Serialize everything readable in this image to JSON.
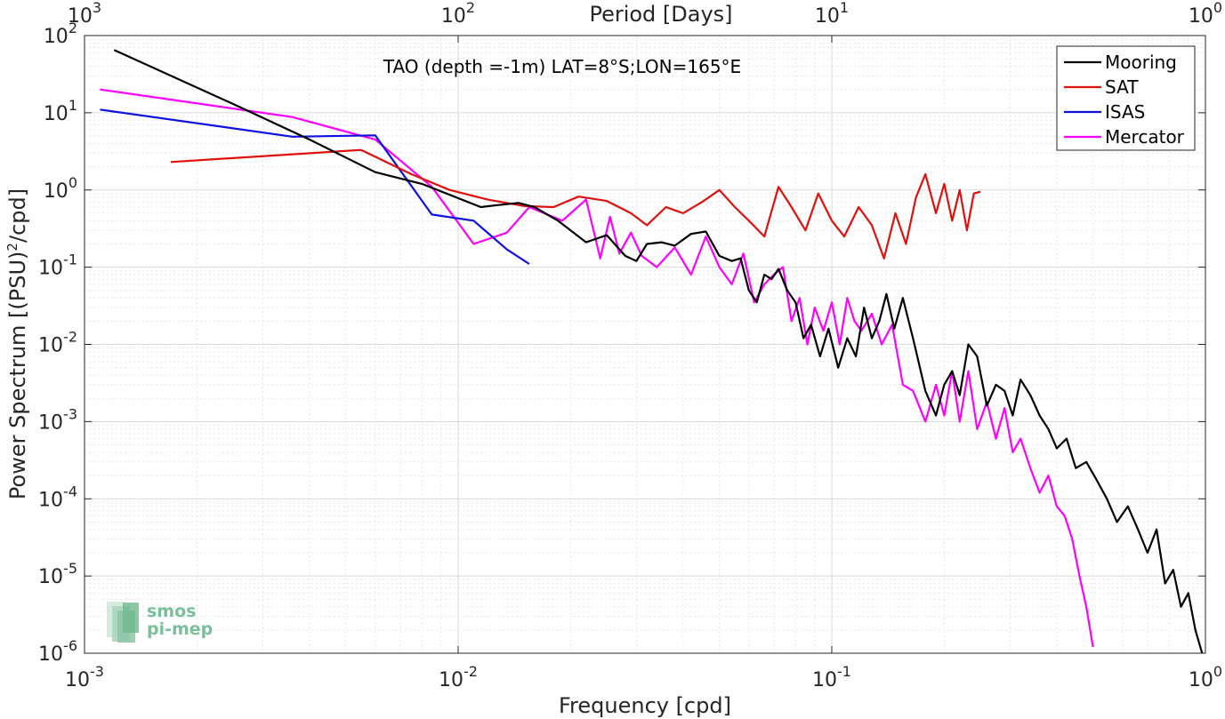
{
  "chart_data": {
    "type": "line",
    "title": "TAO (depth =-1m) LAT=8°S;LON=165°E",
    "xlabel": "Frequency [cpd]",
    "ylabel": "Power Spectrum [(PSU)",
    "ylabel_sup": "2",
    "ylabel_tail": "/cpd]",
    "top_xlabel": "Period [Days]",
    "x_scale": "log",
    "y_scale": "log",
    "xlim": [
      0.001,
      1
    ],
    "ylim": [
      1e-06,
      100
    ],
    "grid": true,
    "legend_position": "top-right",
    "x_ticks": [
      {
        "value": 0.001,
        "base": "10",
        "exp": "-3"
      },
      {
        "value": 0.01,
        "base": "10",
        "exp": "-2"
      },
      {
        "value": 0.1,
        "base": "10",
        "exp": "-1"
      },
      {
        "value": 1,
        "base": "10",
        "exp": "0"
      }
    ],
    "top_ticks": [
      {
        "value": 0.001,
        "base": "10",
        "exp": "3"
      },
      {
        "value": 0.01,
        "base": "10",
        "exp": "2"
      },
      {
        "value": 0.1,
        "base": "10",
        "exp": "1"
      },
      {
        "value": 1,
        "base": "10",
        "exp": "0"
      }
    ],
    "y_ticks": [
      {
        "value": 100,
        "base": "10",
        "exp": "2"
      },
      {
        "value": 10,
        "base": "10",
        "exp": "1"
      },
      {
        "value": 1,
        "base": "10",
        "exp": "0"
      },
      {
        "value": 0.1,
        "base": "10",
        "exp": "-1"
      },
      {
        "value": 0.01,
        "base": "10",
        "exp": "-2"
      },
      {
        "value": 0.001,
        "base": "10",
        "exp": "-3"
      },
      {
        "value": 0.0001,
        "base": "10",
        "exp": "-4"
      },
      {
        "value": 1e-05,
        "base": "10",
        "exp": "-5"
      },
      {
        "value": 1e-06,
        "base": "10",
        "exp": "-6"
      }
    ],
    "series": [
      {
        "name": "Mooring",
        "color": "#000000",
        "x": [
          0.0012,
          0.0025,
          0.004,
          0.006,
          0.008,
          0.0115,
          0.0125,
          0.0145,
          0.016,
          0.0185,
          0.022,
          0.025,
          0.028,
          0.03,
          0.032,
          0.035,
          0.038,
          0.042,
          0.046,
          0.05,
          0.054,
          0.057,
          0.06,
          0.063,
          0.066,
          0.069,
          0.072,
          0.076,
          0.08,
          0.084,
          0.088,
          0.093,
          0.098,
          0.104,
          0.11,
          0.116,
          0.122,
          0.128,
          0.134,
          0.14,
          0.147,
          0.155,
          0.165,
          0.178,
          0.19,
          0.2,
          0.21,
          0.22,
          0.232,
          0.245,
          0.26,
          0.275,
          0.29,
          0.305,
          0.32,
          0.34,
          0.36,
          0.38,
          0.4,
          0.425,
          0.45,
          0.48,
          0.51,
          0.545,
          0.58,
          0.62,
          0.66,
          0.7,
          0.74,
          0.78,
          0.82,
          0.86,
          0.9,
          0.94,
          0.98
        ],
        "y": [
          65,
          13,
          4.5,
          1.7,
          1.2,
          0.6,
          0.63,
          0.68,
          0.6,
          0.4,
          0.21,
          0.26,
          0.14,
          0.12,
          0.2,
          0.21,
          0.19,
          0.27,
          0.29,
          0.14,
          0.12,
          0.13,
          0.05,
          0.035,
          0.08,
          0.07,
          0.095,
          0.05,
          0.035,
          0.012,
          0.018,
          0.007,
          0.016,
          0.005,
          0.012,
          0.007,
          0.03,
          0.012,
          0.02,
          0.045,
          0.016,
          0.04,
          0.012,
          0.0025,
          0.0012,
          0.003,
          0.0045,
          0.0022,
          0.01,
          0.007,
          0.0016,
          0.003,
          0.0025,
          0.0012,
          0.0035,
          0.0022,
          0.0012,
          0.0008,
          0.00045,
          0.0006,
          0.00025,
          0.0003,
          0.00018,
          0.0001,
          5e-05,
          8e-05,
          4e-05,
          2e-05,
          4e-05,
          8e-06,
          1.2e-05,
          4e-06,
          6e-06,
          2e-06,
          1e-06
        ]
      },
      {
        "name": "SAT",
        "color": "#e0100d",
        "x": [
          0.0017,
          0.0055,
          0.0075,
          0.0095,
          0.012,
          0.015,
          0.018,
          0.021,
          0.025,
          0.029,
          0.032,
          0.036,
          0.04,
          0.045,
          0.05,
          0.055,
          0.06,
          0.066,
          0.072,
          0.078,
          0.085,
          0.092,
          0.1,
          0.108,
          0.118,
          0.128,
          0.138,
          0.148,
          0.158,
          0.168,
          0.178,
          0.19,
          0.2,
          0.21,
          0.22,
          0.23,
          0.24,
          0.25
        ],
        "y": [
          2.3,
          3.3,
          1.6,
          1.0,
          0.75,
          0.62,
          0.6,
          0.82,
          0.72,
          0.5,
          0.35,
          0.6,
          0.5,
          0.7,
          1.0,
          0.6,
          0.4,
          0.25,
          1.1,
          0.6,
          0.3,
          0.9,
          0.4,
          0.25,
          0.6,
          0.35,
          0.13,
          0.5,
          0.2,
          0.8,
          1.6,
          0.5,
          1.2,
          0.4,
          1.0,
          0.3,
          0.9,
          0.95
        ]
      },
      {
        "name": "ISAS",
        "color": "#0d10e0",
        "x": [
          0.0011,
          0.0036,
          0.006,
          0.0085,
          0.011,
          0.0135,
          0.0155
        ],
        "y": [
          11,
          4.9,
          5.1,
          0.48,
          0.4,
          0.17,
          0.11
        ]
      },
      {
        "name": "Mercator",
        "color": "#ff00ff",
        "x": [
          0.0011,
          0.0036,
          0.006,
          0.0085,
          0.011,
          0.0135,
          0.0155,
          0.019,
          0.022,
          0.024,
          0.0255,
          0.027,
          0.029,
          0.031,
          0.034,
          0.038,
          0.042,
          0.046,
          0.05,
          0.054,
          0.058,
          0.062,
          0.066,
          0.07,
          0.074,
          0.078,
          0.082,
          0.086,
          0.09,
          0.095,
          0.1,
          0.105,
          0.11,
          0.115,
          0.12,
          0.128,
          0.136,
          0.145,
          0.155,
          0.165,
          0.178,
          0.19,
          0.2,
          0.21,
          0.22,
          0.232,
          0.245,
          0.26,
          0.275,
          0.29,
          0.305,
          0.32,
          0.34,
          0.36,
          0.38,
          0.4,
          0.42,
          0.44,
          0.46,
          0.48,
          0.5
        ],
        "y": [
          20,
          8.8,
          4.5,
          1.1,
          0.2,
          0.28,
          0.6,
          0.4,
          0.75,
          0.13,
          0.45,
          0.15,
          0.28,
          0.14,
          0.1,
          0.18,
          0.08,
          0.25,
          0.1,
          0.06,
          0.15,
          0.035,
          0.06,
          0.08,
          0.1,
          0.02,
          0.04,
          0.01,
          0.03,
          0.015,
          0.035,
          0.01,
          0.04,
          0.02,
          0.015,
          0.025,
          0.01,
          0.018,
          0.003,
          0.0025,
          0.001,
          0.003,
          0.0012,
          0.0045,
          0.001,
          0.0045,
          0.0008,
          0.0018,
          0.0006,
          0.0015,
          0.0004,
          0.0006,
          0.00025,
          0.00012,
          0.0002,
          8e-05,
          6e-05,
          3e-05,
          1e-05,
          4e-06,
          1.2e-06
        ]
      }
    ],
    "legend": [
      {
        "label": "Mooring",
        "color": "#000000"
      },
      {
        "label": "SAT",
        "color": "#e0100d"
      },
      {
        "label": "ISAS",
        "color": "#0d10e0"
      },
      {
        "label": "Mercator",
        "color": "#ff00ff"
      }
    ]
  },
  "logo": {
    "line1": "smos",
    "line2": "pi-mep"
  }
}
